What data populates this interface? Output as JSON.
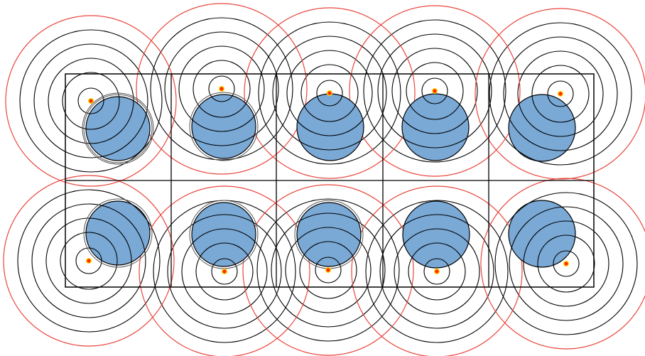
{
  "diagram": {
    "grid": {
      "rows": 2,
      "cols": 5
    },
    "colors": {
      "background": "#ffffff",
      "grid_line": "#000000",
      "black_ring": "#000000",
      "red_ring": "#e8453c",
      "disc_fill": "#7aa9d6",
      "disc_stroke": "#000000",
      "source_dot": "#ff2a00",
      "source_dot_ring": "#ffd400"
    },
    "cells": [
      {
        "row": 1,
        "col": 1,
        "inner_circle_rings": 3
      },
      {
        "row": 1,
        "col": 2,
        "inner_circle_rings": 2
      },
      {
        "row": 1,
        "col": 3,
        "inner_circle_rings": 1
      },
      {
        "row": 1,
        "col": 4,
        "inner_circle_rings": 1
      },
      {
        "row": 1,
        "col": 5,
        "inner_circle_rings": 1
      },
      {
        "row": 2,
        "col": 1,
        "inner_circle_rings": 2
      },
      {
        "row": 2,
        "col": 2,
        "inner_circle_rings": 2
      },
      {
        "row": 2,
        "col": 3,
        "inner_circle_rings": 2
      },
      {
        "row": 2,
        "col": 4,
        "inner_circle_rings": 1
      },
      {
        "row": 2,
        "col": 5,
        "inner_circle_rings": 1
      }
    ]
  }
}
